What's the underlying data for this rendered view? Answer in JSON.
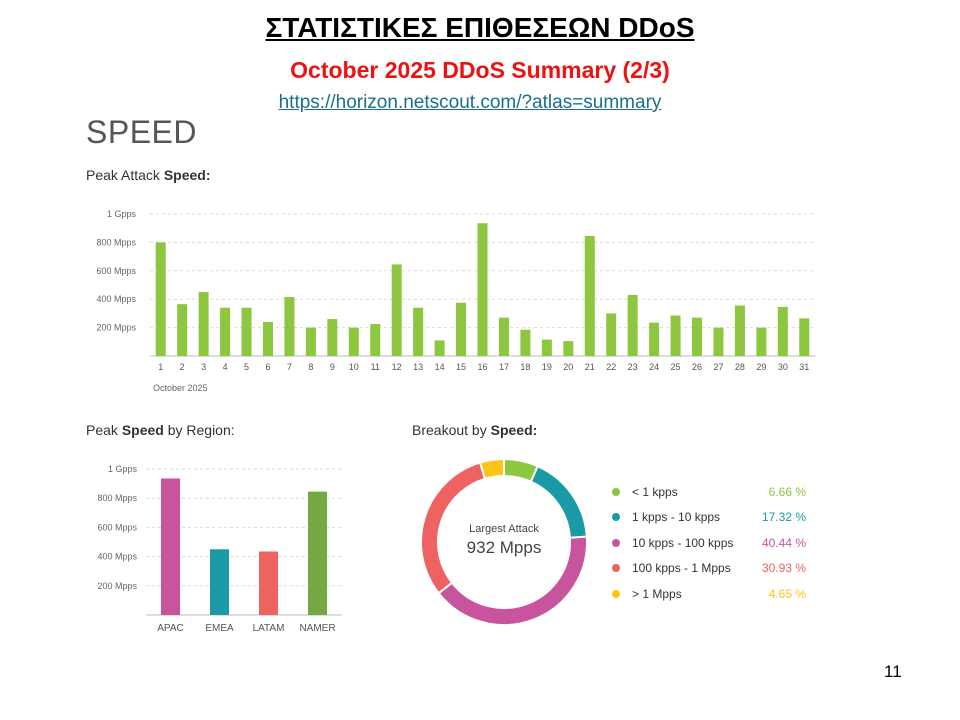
{
  "header": {
    "title": "ΣΤΑΤΙΣΤΙΚΕΣ ΕΠΙΘΕΣΕΩΝ  DDoS",
    "subtitle": "October 2025 DDoS Summary (2/3)",
    "link": "https://horizon.netscout.com/?atlas=summary"
  },
  "section_heading": "SPEED",
  "labels": {
    "peak_attack_prefix": "Peak Attack ",
    "peak_attack_bold": "Speed:",
    "by_region_prefix": "Peak ",
    "by_region_bold": "Speed",
    "by_region_suffix": " by Region:",
    "breakout_prefix": "Breakout by ",
    "breakout_bold": "Speed:"
  },
  "page_number": "11",
  "chart_data": [
    {
      "type": "bar",
      "title": "Peak Attack Speed:",
      "xlabel": "October 2025",
      "ylabel": "",
      "categories": [
        "1",
        "2",
        "3",
        "4",
        "5",
        "6",
        "7",
        "8",
        "9",
        "10",
        "11",
        "12",
        "13",
        "14",
        "15",
        "16",
        "17",
        "18",
        "19",
        "20",
        "21",
        "22",
        "23",
        "24",
        "25",
        "26",
        "27",
        "28",
        "29",
        "30",
        "31"
      ],
      "values": [
        800,
        365,
        450,
        340,
        340,
        240,
        415,
        200,
        260,
        200,
        225,
        645,
        340,
        110,
        375,
        935,
        270,
        185,
        115,
        105,
        845,
        300,
        430,
        235,
        285,
        270,
        200,
        355,
        200,
        345,
        265
      ],
      "unit": "Mpps",
      "ylim": [
        0,
        1000
      ],
      "yticks": [
        200,
        400,
        600,
        800,
        1000
      ],
      "ytick_labels": [
        "200 Mpps",
        "400 Mpps",
        "600 Mpps",
        "800 Mpps",
        "1 Gpps"
      ],
      "color": "#8dc63f",
      "grid": true
    },
    {
      "type": "bar",
      "title": "Peak Speed by Region:",
      "categories": [
        "APAC",
        "EMEA",
        "LATAM",
        "NAMER"
      ],
      "values": [
        935,
        450,
        435,
        845
      ],
      "unit": "Mpps",
      "ylim": [
        0,
        1000
      ],
      "yticks": [
        200,
        400,
        600,
        800,
        1000
      ],
      "ytick_labels": [
        "200 Mpps",
        "400 Mpps",
        "600 Mpps",
        "800 Mpps",
        "1 Gpps"
      ],
      "colors": [
        "#c9549e",
        "#1a9aa4",
        "#ee6262",
        "#74a842"
      ],
      "grid": true
    },
    {
      "type": "pie",
      "title": "Breakout by Speed:",
      "center_label": "Largest Attack",
      "center_value": "932 Mpps",
      "slices": [
        {
          "label": "< 1 kpps",
          "value": 6.66,
          "value_label": "6.66 %",
          "color": "#8dc63f"
        },
        {
          "label": "1 kpps - 10 kpps",
          "value": 17.32,
          "value_label": "17.32 %",
          "color": "#1a9aa4"
        },
        {
          "label": "10 kpps - 100 kpps",
          "value": 40.44,
          "value_label": "40.44 %",
          "color": "#c9549e"
        },
        {
          "label": "100 kpps - 1 Mpps",
          "value": 30.93,
          "value_label": "30.93 %",
          "color": "#ee6262"
        },
        {
          "label": "> 1 Mpps",
          "value": 4.65,
          "value_label": "4.65 %",
          "color": "#fcc419"
        }
      ]
    }
  ]
}
